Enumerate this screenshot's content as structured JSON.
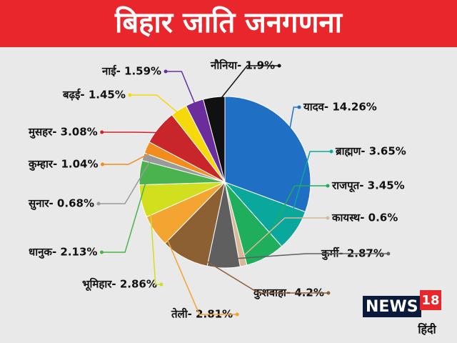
{
  "chart_data": {
    "type": "pie",
    "title": "बिहार जाति जनगणना",
    "value_labels": [
      "यादव- 14.26%",
      "ब्राह्मण- 3.65%",
      "राजपूत- 3.45%",
      "कायस्थ- 0.6%",
      "कुर्मी- 2.87%",
      "कुशवाहा- 4.2%",
      "तेली- 2.81%",
      "भूमिहार- 2.86%",
      "धानुक- 2.13%",
      "सुनार- 0.68%",
      "कुम्हार- 1.04%",
      "मुसहर- 3.08%",
      "बढ़ई- 1.45%",
      "नाई- 1.59%",
      "नौनिया- 1.9%"
    ],
    "values": [
      14.26,
      3.65,
      3.45,
      0.6,
      2.87,
      4.2,
      2.81,
      2.86,
      2.13,
      0.68,
      1.04,
      3.08,
      1.45,
      1.59,
      1.9
    ],
    "colors": [
      "#1f6fc4",
      "#0aa89c",
      "#1fae5b",
      "#d8b896",
      "#5f5f5f",
      "#8d6034",
      "#f4a431",
      "#d2df1f",
      "#4bb34d",
      "#9a9a9a",
      "#f28c1c",
      "#c8262a",
      "#f5d90a",
      "#6b2d9b",
      "#111111"
    ]
  },
  "logo": {
    "brand": "NEWS",
    "number": "18",
    "language": "हिंदी"
  }
}
